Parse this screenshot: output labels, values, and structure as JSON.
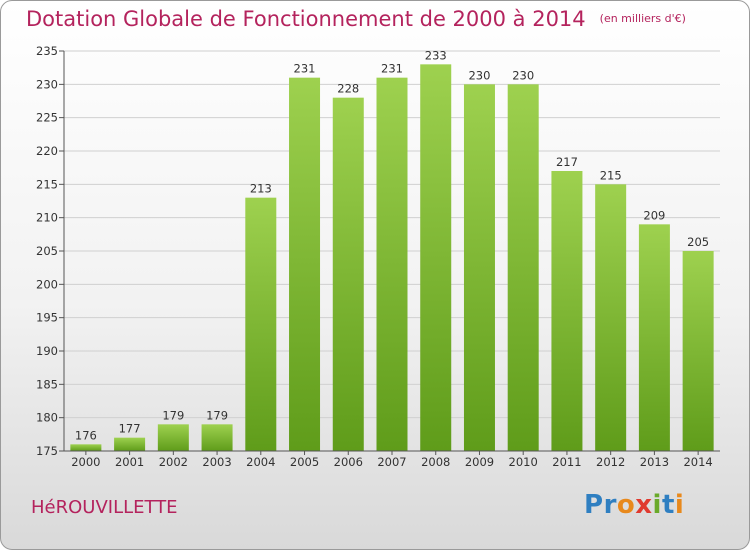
{
  "title": "Dotation Globale de Fonctionnement de 2000 à 2014",
  "subtitle": "(en milliers d'€)",
  "commune": "HéROUVILLETTE",
  "logo": {
    "text": "Proxiti",
    "letters": [
      {
        "char": "P",
        "color": "#2f7fc1"
      },
      {
        "char": "r",
        "color": "#2f7fc1"
      },
      {
        "char": "o",
        "color": "#e8891c"
      },
      {
        "char": "x",
        "color": "#e03a2f"
      },
      {
        "char": "i",
        "color": "#6aaa2a"
      },
      {
        "char": "t",
        "color": "#2f7fc1"
      },
      {
        "char": "i",
        "color": "#e8891c"
      }
    ]
  },
  "colors": {
    "title": "#b4235d",
    "bar_top": "#9ed14f",
    "bar_bottom": "#5f9c1a",
    "grid": "#d0d0d0",
    "axis": "#555555"
  },
  "chart_data": {
    "type": "bar",
    "title": "Dotation Globale de Fonctionnement de 2000 à 2014",
    "subtitle": "(en milliers d'€)",
    "categories": [
      "2000",
      "2001",
      "2002",
      "2003",
      "2004",
      "2005",
      "2006",
      "2007",
      "2008",
      "2009",
      "2010",
      "2011",
      "2012",
      "2013",
      "2014"
    ],
    "values": [
      176,
      177,
      179,
      179,
      213,
      231,
      228,
      231,
      233,
      230,
      230,
      217,
      215,
      209,
      205
    ],
    "ylim": [
      175,
      235
    ],
    "yticks": [
      175,
      180,
      185,
      190,
      195,
      200,
      205,
      210,
      215,
      220,
      225,
      230,
      235
    ],
    "grid": true,
    "legend": "none"
  }
}
